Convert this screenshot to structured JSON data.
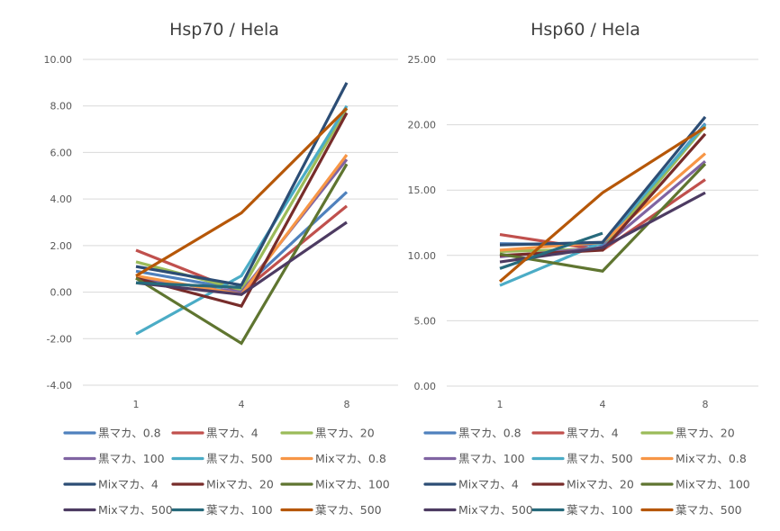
{
  "chart_data": [
    {
      "type": "line",
      "title": "Hsp70 / Hela",
      "xlabel": "",
      "ylabel": "",
      "categories": [
        "1",
        "4",
        "8"
      ],
      "ylim": [
        -4,
        10
      ],
      "yticks": [
        "-4.00",
        "-2.00",
        "0.00",
        "2.00",
        "4.00",
        "6.00",
        "8.00",
        "10.00"
      ],
      "ytick_values": [
        -4,
        -2,
        0,
        2,
        4,
        6,
        8,
        10
      ],
      "grid": true,
      "legend": "bottom",
      "series": [
        {
          "name": "黒マカ、0.8",
          "color": "#4F81BD",
          "values": [
            0.9,
            0.1,
            4.3
          ]
        },
        {
          "name": "黒マカ、4",
          "color": "#C0504D",
          "values": [
            1.8,
            0.0,
            3.7
          ]
        },
        {
          "name": "黒マカ、20",
          "color": "#9BBB59",
          "values": [
            1.3,
            0.1,
            7.9
          ]
        },
        {
          "name": "黒マカ、100",
          "color": "#8064A2",
          "values": [
            0.6,
            0.0,
            5.7
          ]
        },
        {
          "name": "黒マカ、500",
          "color": "#4BACC6",
          "values": [
            -1.8,
            0.7,
            8.0
          ]
        },
        {
          "name": "Mixマカ、0.8",
          "color": "#F79646",
          "values": [
            0.7,
            -0.1,
            5.9
          ]
        },
        {
          "name": "Mixマカ、4",
          "color": "#2C4D75",
          "values": [
            1.1,
            0.3,
            9.0
          ]
        },
        {
          "name": "Mixマカ、20",
          "color": "#772C2A",
          "values": [
            0.6,
            -0.6,
            7.7
          ]
        },
        {
          "name": "Mixマカ、100",
          "color": "#5F7530",
          "values": [
            0.6,
            -2.2,
            5.5
          ]
        },
        {
          "name": "Mixマカ、500",
          "color": "#4D3B62",
          "values": [
            0.4,
            -0.1,
            3.0
          ]
        },
        {
          "name": "葉マカ、100",
          "color": "#276A7C",
          "values": [
            0.4,
            0.2,
            null
          ]
        },
        {
          "name": "葉マカ、500",
          "color": "#B65708",
          "values": [
            0.7,
            3.4,
            7.9
          ]
        }
      ]
    },
    {
      "type": "line",
      "title": "Hsp60 / Hela",
      "xlabel": "",
      "ylabel": "",
      "categories": [
        "1",
        "4",
        "8"
      ],
      "ylim": [
        0,
        25
      ],
      "yticks": [
        "0.00",
        "5.00",
        "10.00",
        "15.00",
        "20.00",
        "25.00"
      ],
      "ytick_values": [
        0,
        5,
        10,
        15,
        20,
        25
      ],
      "grid": true,
      "legend": "bottom",
      "series": [
        {
          "name": "黒マカ、0.8",
          "color": "#4F81BD",
          "values": [
            10.9,
            10.8,
            20.1
          ]
        },
        {
          "name": "黒マカ、4",
          "color": "#C0504D",
          "values": [
            11.6,
            10.4,
            15.8
          ]
        },
        {
          "name": "黒マカ、20",
          "color": "#9BBB59",
          "values": [
            10.3,
            10.5,
            19.9
          ]
        },
        {
          "name": "黒マカ、100",
          "color": "#8064A2",
          "values": [
            9.9,
            10.6,
            17.2
          ]
        },
        {
          "name": "黒マカ、500",
          "color": "#4BACC6",
          "values": [
            7.7,
            11.0,
            20.0
          ]
        },
        {
          "name": "Mixマカ、0.8",
          "color": "#F79646",
          "values": [
            10.4,
            11.0,
            17.8
          ]
        },
        {
          "name": "Mixマカ、4",
          "color": "#2C4D75",
          "values": [
            10.8,
            11.0,
            20.6
          ]
        },
        {
          "name": "Mixマカ、20",
          "color": "#772C2A",
          "values": [
            10.0,
            10.4,
            19.3
          ]
        },
        {
          "name": "Mixマカ、100",
          "color": "#5F7530",
          "values": [
            10.1,
            8.8,
            17.0
          ]
        },
        {
          "name": "Mixマカ、500",
          "color": "#4D3B62",
          "values": [
            9.5,
            10.6,
            14.8
          ]
        },
        {
          "name": "葉マカ、100",
          "color": "#276A7C",
          "values": [
            9.0,
            11.7,
            null
          ]
        },
        {
          "name": "葉マカ、500",
          "color": "#B65708",
          "values": [
            8.0,
            14.8,
            19.8
          ]
        }
      ]
    }
  ]
}
